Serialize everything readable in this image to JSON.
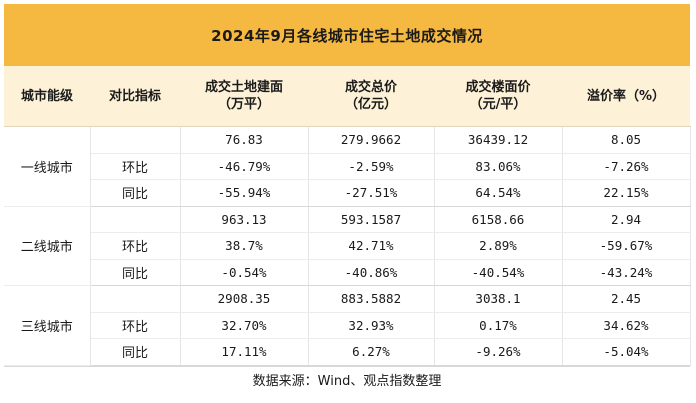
{
  "title": "2024年9月各线城市住宅土地成交情况",
  "headers": [
    {
      "line1": "城市能级",
      "line2": ""
    },
    {
      "line1": "对比指标",
      "line2": ""
    },
    {
      "line1": "成交土地建面",
      "line2": "（万平）"
    },
    {
      "line1": "成交总价",
      "line2": "（亿元）"
    },
    {
      "line1": "成交楼面价",
      "line2": "（元/平）"
    },
    {
      "line1": "溢价率（%）",
      "line2": ""
    }
  ],
  "groups": [
    {
      "city": "一线城市",
      "rows": [
        {
          "metric": "",
          "values": [
            "76.83",
            "279.9662",
            "36439.12",
            "8.05"
          ]
        },
        {
          "metric": "环比",
          "values": [
            "-46.79%",
            "-2.59%",
            "83.06%",
            "-7.26%"
          ]
        },
        {
          "metric": "同比",
          "values": [
            "-55.94%",
            "-27.51%",
            "64.54%",
            "22.15%"
          ]
        }
      ]
    },
    {
      "city": "二线城市",
      "rows": [
        {
          "metric": "",
          "values": [
            "963.13",
            "593.1587",
            "6158.66",
            "2.94"
          ]
        },
        {
          "metric": "环比",
          "values": [
            "38.7%",
            "42.71%",
            "2.89%",
            "-59.67%"
          ]
        },
        {
          "metric": "同比",
          "values": [
            "-0.54%",
            "-40.86%",
            "-40.54%",
            "-43.24%"
          ]
        }
      ]
    },
    {
      "city": "三线城市",
      "rows": [
        {
          "metric": "",
          "values": [
            "2908.35",
            "883.5882",
            "3038.1",
            "2.45"
          ]
        },
        {
          "metric": "环比",
          "values": [
            "32.70%",
            "32.93%",
            "0.17%",
            "34.62%"
          ]
        },
        {
          "metric": "同比",
          "values": [
            "17.11%",
            "6.27%",
            "-9.26%",
            "-5.04%"
          ]
        }
      ]
    }
  ],
  "footer": "数据来源：Wind、观点指数整理",
  "colors": {
    "title_bg": "#f5b841",
    "header_bg": "#fdf1d8"
  }
}
